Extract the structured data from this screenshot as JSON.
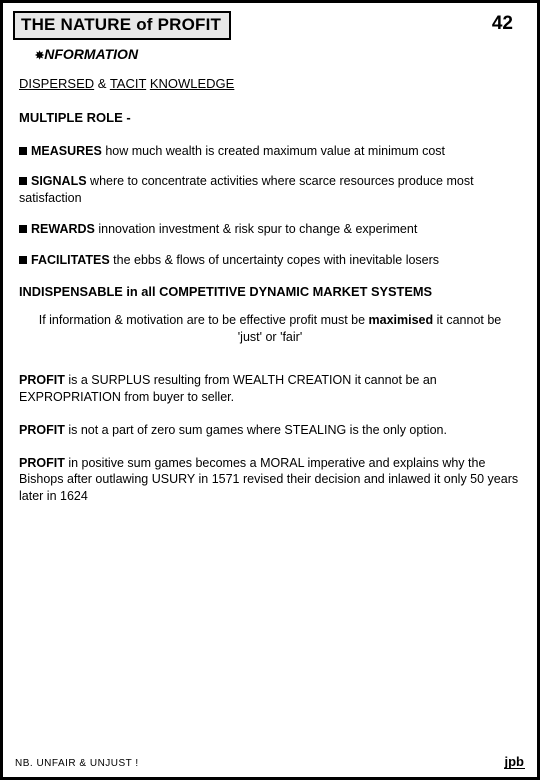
{
  "header": {
    "title": "THE NATURE of PROFIT",
    "page_number": "42",
    "info_label": "NFORMATION"
  },
  "section_heading": {
    "word1": "DISPERSED",
    "amp": "&",
    "word2": "TACIT",
    "word3": "KNOWLEDGE"
  },
  "multiple_role_label": "MULTIPLE ROLE -",
  "bullets": [
    {
      "lead": "MEASURES",
      "rest": " how much wealth is created maximum value at minimum cost"
    },
    {
      "lead": "SIGNALS",
      "rest": " where to concentrate activities where scarce resources produce most satisfaction"
    },
    {
      "lead": "REWARDS",
      "rest": " innovation investment & risk spur to change & experiment"
    },
    {
      "lead": "FACILITATES",
      "rest": " the ebbs & flows of uncertainty copes with inevitable losers"
    }
  ],
  "indispensable": "INDISPENSABLE in all COMPETITIVE DYNAMIC MARKET SYSTEMS",
  "center_paragraph": {
    "pre": "If information & motivation are to be effective profit must be ",
    "bold": "maximised",
    "post": " it cannot be 'just' or 'fair'"
  },
  "profit_paragraphs": [
    {
      "lead": "PROFIT ",
      "rest": " is a SURPLUS resulting from WEALTH CREATION it cannot be an EXPROPRIATION from buyer to seller."
    },
    {
      "lead": "PROFIT ",
      "rest": " is not a part of zero sum games where STEALING is the only option."
    },
    {
      "lead": "PROFIT ",
      "rest": " in positive sum games becomes a MORAL imperative and explains why the Bishops after outlawing USURY in 1571 revised their decision and inlawed it only 50 years later in 1624"
    }
  ],
  "footer": {
    "nb": "NB.  UNFAIR & UNJUST !",
    "logo": "jpb"
  }
}
